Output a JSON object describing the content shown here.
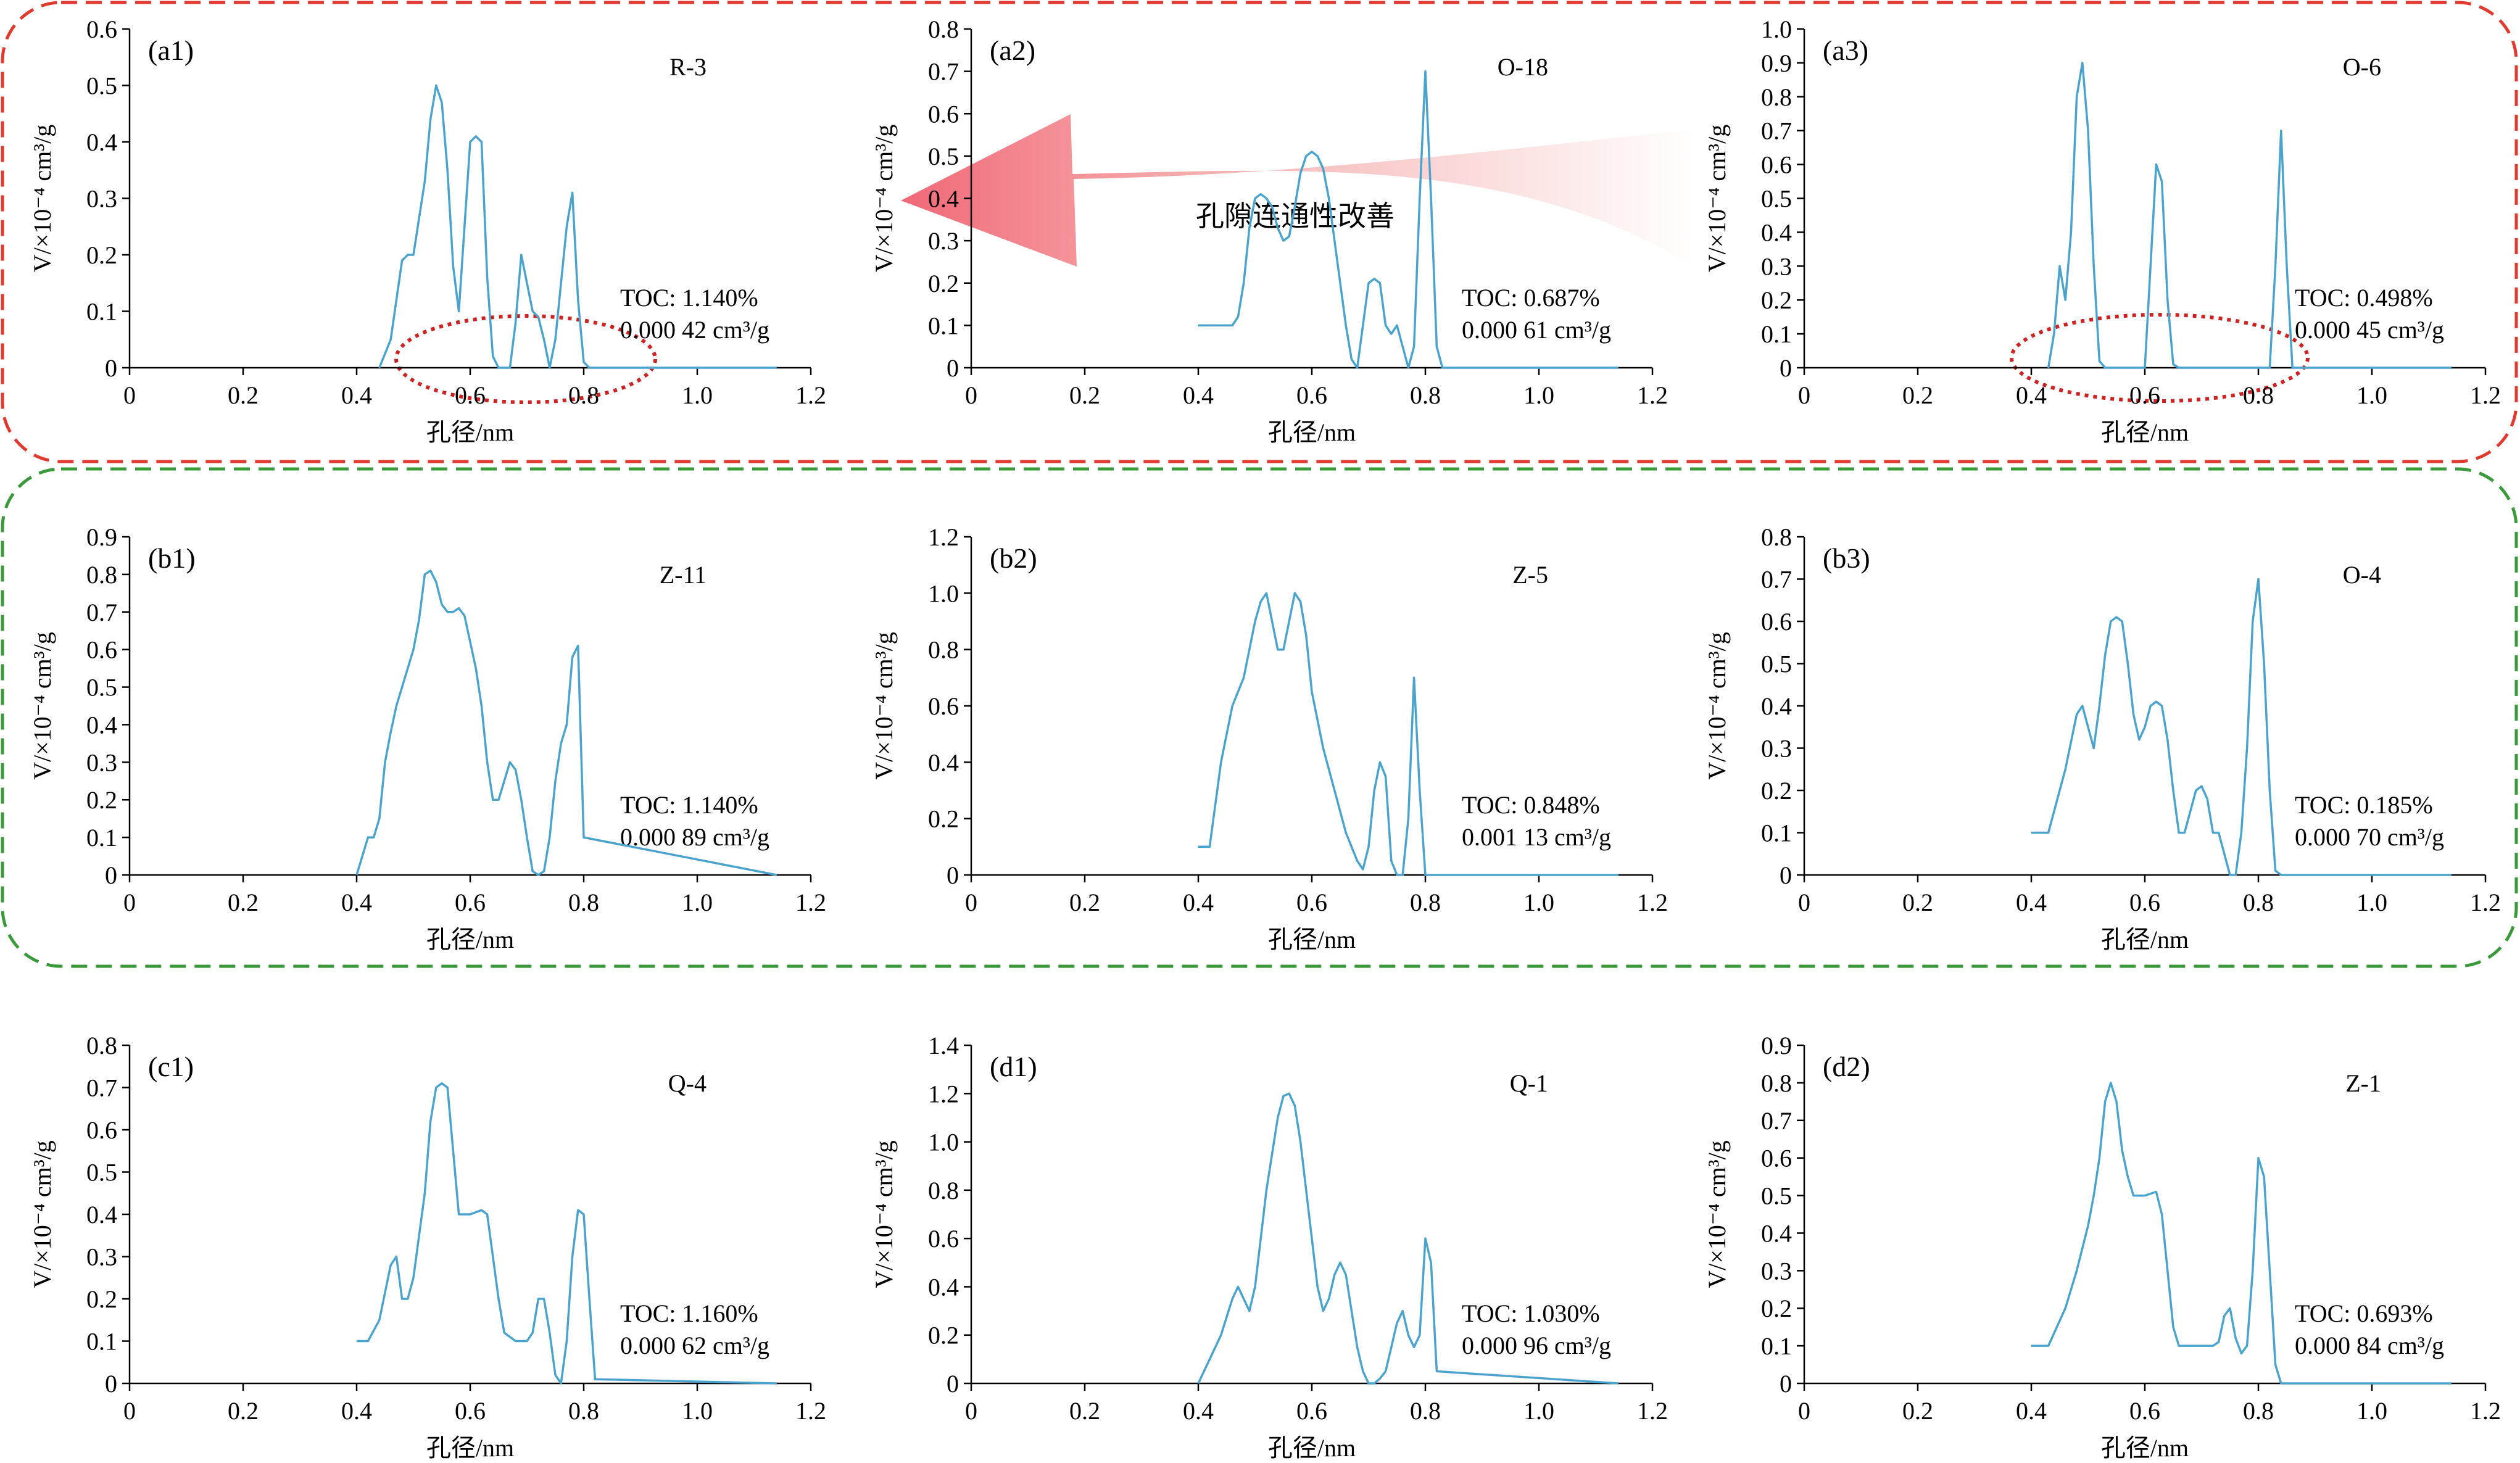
{
  "annotation": {
    "arrow_text": "孔隙连通性改善",
    "group_a_color": "#e03a2f",
    "group_b_color": "#3a9a3a",
    "ellipse_color": "#cc2222",
    "arrow_color": "#f08080"
  },
  "chart_data": [
    {
      "id": "a1",
      "type": "line",
      "panel_label": "(a1)",
      "sample": "R-3",
      "xlabel": "孔径/nm",
      "ylabel": "V/×10⁻⁴ cm³/g",
      "toc": "TOC: 1.140%",
      "volume": "0.000 42 cm³/g",
      "xlim": [
        0,
        1.2
      ],
      "ylim": [
        0,
        0.6
      ],
      "xticks": [
        "0",
        "0.2",
        "0.4",
        "0.6",
        "0.8",
        "1.0",
        "1.2"
      ],
      "yticks": [
        "0",
        "0.1",
        "0.2",
        "0.3",
        "0.4",
        "0.5",
        "0.6"
      ],
      "line_color": "#4aa3cc",
      "x": [
        0.44,
        0.46,
        0.47,
        0.48,
        0.49,
        0.5,
        0.52,
        0.53,
        0.54,
        0.55,
        0.56,
        0.57,
        0.58,
        0.59,
        0.6,
        0.61,
        0.62,
        0.63,
        0.64,
        0.65,
        0.66,
        0.67,
        0.68,
        0.69,
        0.7,
        0.71,
        0.72,
        0.73,
        0.74,
        0.75,
        0.76,
        0.77,
        0.78,
        0.79,
        0.8,
        0.81,
        0.82,
        1.14
      ],
      "y": [
        0,
        0.05,
        0.12,
        0.19,
        0.2,
        0.2,
        0.33,
        0.44,
        0.5,
        0.47,
        0.35,
        0.18,
        0.1,
        0.25,
        0.4,
        0.41,
        0.4,
        0.16,
        0.02,
        0,
        0,
        0,
        0.08,
        0.2,
        0.15,
        0.1,
        0.09,
        0.05,
        0,
        0.05,
        0.15,
        0.25,
        0.31,
        0.12,
        0.01,
        0,
        0,
        0
      ]
    },
    {
      "id": "a2",
      "type": "line",
      "panel_label": "(a2)",
      "sample": "O-18",
      "xlabel": "孔径/nm",
      "ylabel": "V/×10⁻⁴ cm³/g",
      "toc": "TOC: 0.687%",
      "volume": "0.000 61 cm³/g",
      "xlim": [
        0,
        1.2
      ],
      "ylim": [
        0,
        0.8
      ],
      "xticks": [
        "0",
        "0.2",
        "0.4",
        "0.6",
        "0.8",
        "1.0",
        "1.2"
      ],
      "yticks": [
        "0",
        "0.1",
        "0.2",
        "0.3",
        "0.4",
        "0.5",
        "0.6",
        "0.7",
        "0.8"
      ],
      "line_color": "#4aa3cc",
      "x": [
        0.4,
        0.44,
        0.46,
        0.47,
        0.48,
        0.49,
        0.5,
        0.51,
        0.52,
        0.53,
        0.54,
        0.55,
        0.56,
        0.57,
        0.58,
        0.59,
        0.6,
        0.61,
        0.62,
        0.63,
        0.64,
        0.65,
        0.66,
        0.67,
        0.68,
        0.69,
        0.7,
        0.71,
        0.72,
        0.73,
        0.74,
        0.75,
        0.76,
        0.77,
        0.78,
        0.79,
        0.8,
        0.81,
        0.82,
        0.83,
        1.14
      ],
      "y": [
        0.1,
        0.1,
        0.1,
        0.12,
        0.2,
        0.33,
        0.4,
        0.41,
        0.4,
        0.38,
        0.33,
        0.3,
        0.31,
        0.38,
        0.46,
        0.5,
        0.51,
        0.5,
        0.47,
        0.4,
        0.3,
        0.2,
        0.1,
        0.02,
        0,
        0.1,
        0.2,
        0.21,
        0.2,
        0.1,
        0.08,
        0.1,
        0.05,
        0,
        0.05,
        0.4,
        0.7,
        0.4,
        0.05,
        0,
        0
      ]
    },
    {
      "id": "a3",
      "type": "line",
      "panel_label": "(a3)",
      "sample": "O-6",
      "xlabel": "孔径/nm",
      "ylabel": "V/×10⁻⁴ cm³/g",
      "toc": "TOC: 0.498%",
      "volume": "0.000 45 cm³/g",
      "xlim": [
        0,
        1.2
      ],
      "ylim": [
        0,
        1.0
      ],
      "xticks": [
        "0",
        "0.2",
        "0.4",
        "0.6",
        "0.8",
        "1.0",
        "1.2"
      ],
      "yticks": [
        "0",
        "0.1",
        "0.2",
        "0.3",
        "0.4",
        "0.5",
        "0.6",
        "0.7",
        "0.8",
        "0.9",
        "1.0"
      ],
      "line_color": "#4aa3cc",
      "x": [
        0.43,
        0.44,
        0.45,
        0.46,
        0.47,
        0.48,
        0.49,
        0.5,
        0.51,
        0.52,
        0.53,
        0.54,
        0.6,
        0.61,
        0.62,
        0.63,
        0.64,
        0.65,
        0.66,
        0.82,
        0.83,
        0.84,
        0.85,
        0.86,
        1.14
      ],
      "y": [
        0,
        0.1,
        0.3,
        0.2,
        0.4,
        0.8,
        0.9,
        0.7,
        0.3,
        0.02,
        0,
        0,
        0,
        0.3,
        0.6,
        0.55,
        0.2,
        0.01,
        0,
        0,
        0.3,
        0.7,
        0.3,
        0,
        0
      ]
    },
    {
      "id": "b1",
      "type": "line",
      "panel_label": "(b1)",
      "sample": "Z-11",
      "xlabel": "孔径/nm",
      "ylabel": "V/×10⁻⁴ cm³/g",
      "toc": "TOC: 1.140%",
      "volume": "0.000 89 cm³/g",
      "xlim": [
        0,
        1.2
      ],
      "ylim": [
        0,
        0.9
      ],
      "xticks": [
        "0",
        "0.2",
        "0.4",
        "0.6",
        "0.8",
        "1.0",
        "1.2"
      ],
      "yticks": [
        "0",
        "0.1",
        "0.2",
        "0.3",
        "0.4",
        "0.5",
        "0.6",
        "0.7",
        "0.8",
        "0.9"
      ],
      "line_color": "#4aa3cc",
      "x": [
        0.4,
        0.41,
        0.42,
        0.43,
        0.44,
        0.45,
        0.46,
        0.47,
        0.49,
        0.5,
        0.51,
        0.52,
        0.53,
        0.54,
        0.55,
        0.56,
        0.57,
        0.58,
        0.59,
        0.6,
        0.61,
        0.62,
        0.63,
        0.64,
        0.65,
        0.66,
        0.67,
        0.68,
        0.69,
        0.7,
        0.71,
        0.72,
        0.73,
        0.74,
        0.75,
        0.76,
        0.77,
        0.78,
        0.79,
        0.8,
        1.14
      ],
      "y": [
        0,
        0.05,
        0.1,
        0.1,
        0.15,
        0.3,
        0.38,
        0.45,
        0.55,
        0.6,
        0.68,
        0.8,
        0.81,
        0.78,
        0.72,
        0.7,
        0.7,
        0.71,
        0.69,
        0.62,
        0.55,
        0.45,
        0.3,
        0.2,
        0.2,
        0.25,
        0.3,
        0.28,
        0.2,
        0.1,
        0.01,
        0,
        0.01,
        0.1,
        0.25,
        0.35,
        0.4,
        0.58,
        0.61,
        0.1,
        0
      ]
    },
    {
      "id": "b2",
      "type": "line",
      "panel_label": "(b2)",
      "sample": "Z-5",
      "xlabel": "孔径/nm",
      "ylabel": "V/×10⁻⁴ cm³/g",
      "toc": "TOC: 0.848%",
      "volume": "0.001 13 cm³/g",
      "xlim": [
        0,
        1.2
      ],
      "ylim": [
        0,
        1.2
      ],
      "xticks": [
        "0",
        "0.2",
        "0.4",
        "0.6",
        "0.8",
        "1.0",
        "1.2"
      ],
      "yticks": [
        "0",
        "0.2",
        "0.4",
        "0.6",
        "0.8",
        "1.0",
        "1.2"
      ],
      "line_color": "#4aa3cc",
      "x": [
        0.4,
        0.42,
        0.44,
        0.46,
        0.48,
        0.5,
        0.51,
        0.52,
        0.53,
        0.54,
        0.55,
        0.56,
        0.57,
        0.58,
        0.59,
        0.6,
        0.62,
        0.64,
        0.66,
        0.68,
        0.69,
        0.7,
        0.71,
        0.72,
        0.73,
        0.74,
        0.75,
        0.76,
        0.77,
        0.78,
        0.79,
        0.8,
        1.14
      ],
      "y": [
        0.1,
        0.1,
        0.4,
        0.6,
        0.7,
        0.9,
        0.97,
        1.0,
        0.9,
        0.8,
        0.8,
        0.9,
        1.0,
        0.97,
        0.85,
        0.65,
        0.45,
        0.3,
        0.15,
        0.05,
        0.02,
        0.1,
        0.3,
        0.4,
        0.35,
        0.05,
        0,
        0,
        0.2,
        0.7,
        0.3,
        0,
        0
      ]
    },
    {
      "id": "b3",
      "type": "line",
      "panel_label": "(b3)",
      "sample": "O-4",
      "xlabel": "孔径/nm",
      "ylabel": "V/×10⁻⁴ cm³/g",
      "toc": "TOC: 0.185%",
      "volume": "0.000 70 cm³/g",
      "xlim": [
        0,
        1.2
      ],
      "ylim": [
        0,
        0.8
      ],
      "xticks": [
        "0",
        "0.2",
        "0.4",
        "0.6",
        "0.8",
        "1.0",
        "1.2"
      ],
      "yticks": [
        "0",
        "0.1",
        "0.2",
        "0.3",
        "0.4",
        "0.5",
        "0.6",
        "0.7",
        "0.8"
      ],
      "line_color": "#4aa3cc",
      "x": [
        0.4,
        0.43,
        0.46,
        0.48,
        0.49,
        0.5,
        0.51,
        0.52,
        0.53,
        0.54,
        0.55,
        0.56,
        0.57,
        0.58,
        0.59,
        0.6,
        0.61,
        0.62,
        0.63,
        0.64,
        0.65,
        0.66,
        0.67,
        0.68,
        0.69,
        0.7,
        0.71,
        0.72,
        0.73,
        0.74,
        0.75,
        0.76,
        0.77,
        0.78,
        0.79,
        0.8,
        0.81,
        0.82,
        0.83,
        0.84,
        1.14
      ],
      "y": [
        0.1,
        0.1,
        0.25,
        0.38,
        0.4,
        0.35,
        0.3,
        0.4,
        0.52,
        0.6,
        0.61,
        0.6,
        0.5,
        0.38,
        0.32,
        0.35,
        0.4,
        0.41,
        0.4,
        0.32,
        0.2,
        0.1,
        0.1,
        0.15,
        0.2,
        0.21,
        0.18,
        0.1,
        0.1,
        0.05,
        0,
        0,
        0.1,
        0.3,
        0.6,
        0.7,
        0.5,
        0.2,
        0.01,
        0,
        0
      ]
    },
    {
      "id": "c1",
      "type": "line",
      "panel_label": "(c1)",
      "sample": "Q-4",
      "xlabel": "孔径/nm",
      "ylabel": "V/×10⁻⁴ cm³/g",
      "toc": "TOC: 1.160%",
      "volume": "0.000 62 cm³/g",
      "xlim": [
        0,
        1.2
      ],
      "ylim": [
        0,
        0.8
      ],
      "xticks": [
        "0",
        "0.2",
        "0.4",
        "0.6",
        "0.8",
        "1.0",
        "1.2"
      ],
      "yticks": [
        "0",
        "0.1",
        "0.2",
        "0.3",
        "0.4",
        "0.5",
        "0.6",
        "0.7",
        "0.8"
      ],
      "line_color": "#4aa3cc",
      "x": [
        0.4,
        0.42,
        0.44,
        0.46,
        0.47,
        0.48,
        0.49,
        0.5,
        0.51,
        0.52,
        0.53,
        0.54,
        0.55,
        0.56,
        0.57,
        0.58,
        0.6,
        0.62,
        0.63,
        0.64,
        0.65,
        0.66,
        0.68,
        0.7,
        0.71,
        0.72,
        0.73,
        0.74,
        0.75,
        0.76,
        0.77,
        0.78,
        0.79,
        0.8,
        0.81,
        0.82,
        1.14
      ],
      "y": [
        0.1,
        0.1,
        0.15,
        0.28,
        0.3,
        0.2,
        0.2,
        0.25,
        0.35,
        0.45,
        0.62,
        0.7,
        0.71,
        0.7,
        0.55,
        0.4,
        0.4,
        0.41,
        0.4,
        0.3,
        0.2,
        0.12,
        0.1,
        0.1,
        0.12,
        0.2,
        0.2,
        0.12,
        0.02,
        0,
        0.1,
        0.3,
        0.41,
        0.4,
        0.2,
        0.01,
        0
      ]
    },
    {
      "id": "d1",
      "type": "line",
      "panel_label": "(d1)",
      "sample": "Q-1",
      "xlabel": "孔径/nm",
      "ylabel": "V/×10⁻⁴ cm³/g",
      "toc": "TOC: 1.030%",
      "volume": "0.000 96 cm³/g",
      "xlim": [
        0,
        1.2
      ],
      "ylim": [
        0,
        1.4
      ],
      "xticks": [
        "0",
        "0.2",
        "0.4",
        "0.6",
        "0.8",
        "1.0",
        "1.2"
      ],
      "yticks": [
        "0",
        "0.2",
        "0.4",
        "0.6",
        "0.8",
        "1.0",
        "1.2",
        "1.4"
      ],
      "line_color": "#4aa3cc",
      "x": [
        0.4,
        0.42,
        0.44,
        0.46,
        0.47,
        0.48,
        0.49,
        0.5,
        0.52,
        0.54,
        0.55,
        0.56,
        0.57,
        0.58,
        0.59,
        0.6,
        0.61,
        0.62,
        0.63,
        0.64,
        0.65,
        0.66,
        0.67,
        0.68,
        0.69,
        0.7,
        0.71,
        0.72,
        0.73,
        0.74,
        0.75,
        0.76,
        0.77,
        0.78,
        0.79,
        0.8,
        0.81,
        0.82,
        1.14
      ],
      "y": [
        0,
        0.1,
        0.2,
        0.35,
        0.4,
        0.35,
        0.3,
        0.4,
        0.8,
        1.1,
        1.19,
        1.2,
        1.15,
        1.0,
        0.8,
        0.6,
        0.4,
        0.3,
        0.35,
        0.45,
        0.5,
        0.45,
        0.3,
        0.15,
        0.05,
        0,
        0,
        0.02,
        0.05,
        0.15,
        0.25,
        0.3,
        0.2,
        0.15,
        0.2,
        0.6,
        0.5,
        0.05,
        0
      ]
    },
    {
      "id": "d2",
      "type": "line",
      "panel_label": "(d2)",
      "sample": "Z-1",
      "xlabel": "孔径/nm",
      "ylabel": "V/×10⁻⁴ cm³/g",
      "toc": "TOC: 0.693%",
      "volume": "0.000 84 cm³/g",
      "xlim": [
        0,
        1.2
      ],
      "ylim": [
        0,
        0.9
      ],
      "xticks": [
        "0",
        "0.2",
        "0.4",
        "0.6",
        "0.8",
        "1.0",
        "1.2"
      ],
      "yticks": [
        "0",
        "0.1",
        "0.2",
        "0.3",
        "0.4",
        "0.5",
        "0.6",
        "0.7",
        "0.8",
        "0.9"
      ],
      "line_color": "#4aa3cc",
      "x": [
        0.4,
        0.43,
        0.46,
        0.48,
        0.5,
        0.51,
        0.52,
        0.53,
        0.54,
        0.55,
        0.56,
        0.57,
        0.58,
        0.6,
        0.62,
        0.63,
        0.64,
        0.65,
        0.66,
        0.68,
        0.7,
        0.72,
        0.73,
        0.74,
        0.75,
        0.76,
        0.77,
        0.78,
        0.79,
        0.8,
        0.81,
        0.82,
        0.83,
        0.84,
        1.14
      ],
      "y": [
        0.1,
        0.1,
        0.2,
        0.3,
        0.42,
        0.5,
        0.6,
        0.75,
        0.8,
        0.75,
        0.62,
        0.55,
        0.5,
        0.5,
        0.51,
        0.45,
        0.3,
        0.15,
        0.1,
        0.1,
        0.1,
        0.1,
        0.11,
        0.18,
        0.2,
        0.12,
        0.08,
        0.1,
        0.3,
        0.6,
        0.55,
        0.3,
        0.05,
        0,
        0
      ]
    }
  ]
}
